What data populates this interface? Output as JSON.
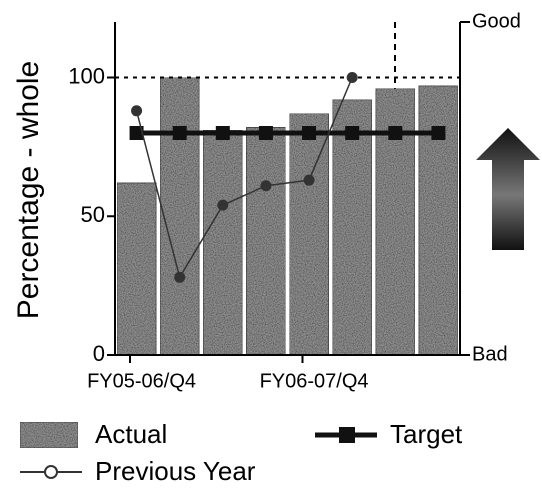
{
  "chart_data": {
    "type": "bar",
    "y_label": "Percentage - whole",
    "categories": [
      "FY05-06/Q4",
      null,
      null,
      null,
      "FY06-07/Q4",
      null,
      null,
      null
    ],
    "series": [
      {
        "name": "Actual",
        "type": "bar",
        "color": "#8f8f8f",
        "values": [
          62,
          100,
          81,
          82,
          87,
          92,
          96,
          97
        ]
      },
      {
        "name": "Target",
        "type": "line",
        "marker": "square",
        "color": "#111111",
        "values": [
          80,
          80,
          80,
          80,
          80,
          80,
          80,
          80
        ]
      },
      {
        "name": "Previous Year",
        "type": "line",
        "marker": "circle",
        "color": "#333333",
        "values": [
          88,
          28,
          54,
          61,
          63,
          100,
          null,
          null
        ]
      }
    ],
    "ylim": [
      0,
      120
    ],
    "yticks": [
      0,
      50,
      100
    ],
    "reference_line": 100,
    "right_labels": {
      "top": "Good",
      "bottom": "Bad"
    }
  }
}
